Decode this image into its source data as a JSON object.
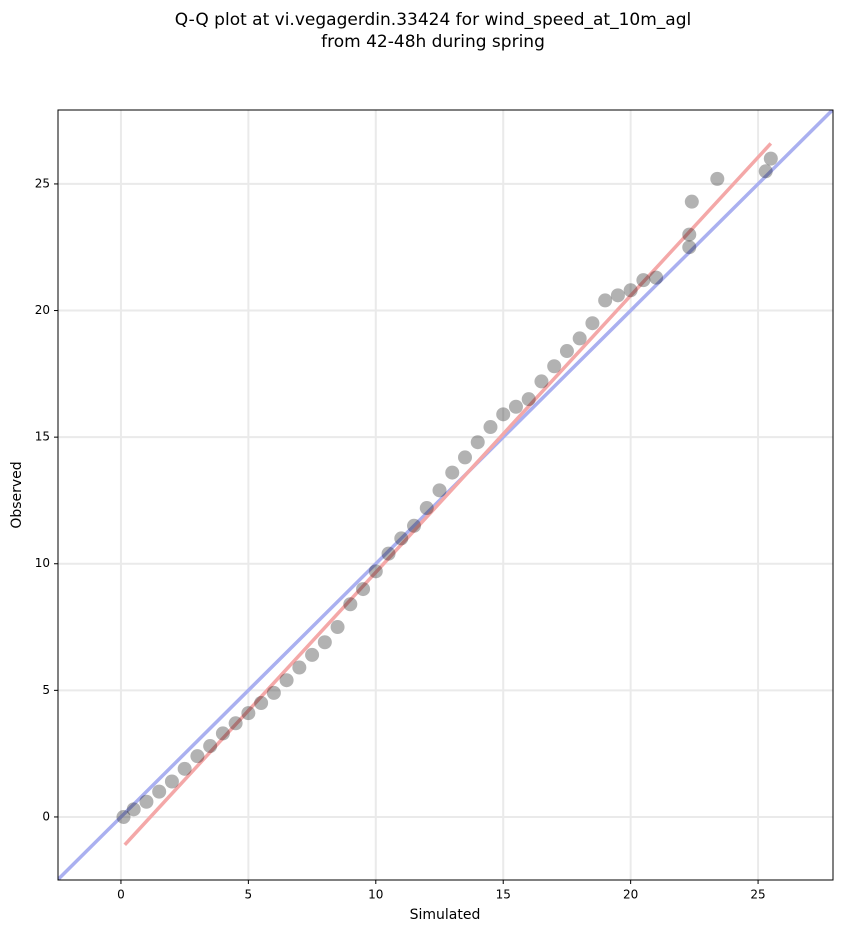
{
  "chart_data": {
    "type": "scatter",
    "title": [
      "Q-Q plot at vi.vegagerdin.33424 for wind_speed_at_10m_agl",
      "from 42-48h during spring"
    ],
    "x_label": "Simulated",
    "y_label": "Observed",
    "xlim": [
      -2.47,
      27.94
    ],
    "ylim": [
      -2.49,
      27.92
    ],
    "xticks": [
      0,
      5,
      10,
      15,
      20,
      25
    ],
    "yticks": [
      0,
      5,
      10,
      15,
      20,
      25
    ],
    "grid": true,
    "series": [
      {
        "color": "#000000",
        "x": [
          0.1,
          0.5,
          1,
          1.5,
          2,
          2.5,
          3,
          3.5,
          4,
          4.5,
          5,
          5.5,
          6,
          6.5,
          7,
          7.5,
          8,
          8.5,
          9,
          9.5,
          10,
          10.5,
          11,
          11.5,
          12,
          12.5,
          13,
          13.5,
          14,
          14.5,
          15,
          15.5,
          16,
          16.5,
          17,
          17.5,
          18,
          18.5,
          19,
          19.5,
          20,
          20.5,
          21,
          22.3,
          22.3,
          22.4,
          23.4,
          25.3,
          25.5
        ],
        "values": [
          0,
          0.3,
          0.6,
          1.0,
          1.4,
          1.9,
          2.4,
          2.8,
          3.3,
          3.7,
          4.1,
          4.5,
          4.9,
          5.4,
          5.9,
          6.4,
          6.9,
          7.5,
          8.4,
          9.0,
          9.7,
          10.4,
          11.0,
          11.5,
          12.2,
          12.9,
          13.6,
          14.2,
          14.8,
          15.4,
          15.9,
          16.2,
          16.5,
          17.2,
          17.8,
          18.4,
          18.9,
          19.5,
          20.4,
          20.6,
          20.8,
          21.2,
          21.3,
          22.5,
          23.0,
          24.3,
          25.2,
          25.5,
          26.0
        ]
      }
    ],
    "lines": [
      {
        "color": "#aab0f0",
        "x": [
          -2.47,
          27.94
        ],
        "values": [
          -2.47,
          27.94
        ]
      },
      {
        "color": "#f4a8a8",
        "x": [
          0.15,
          25.5
        ],
        "values": [
          -1.1,
          26.6
        ]
      }
    ]
  }
}
